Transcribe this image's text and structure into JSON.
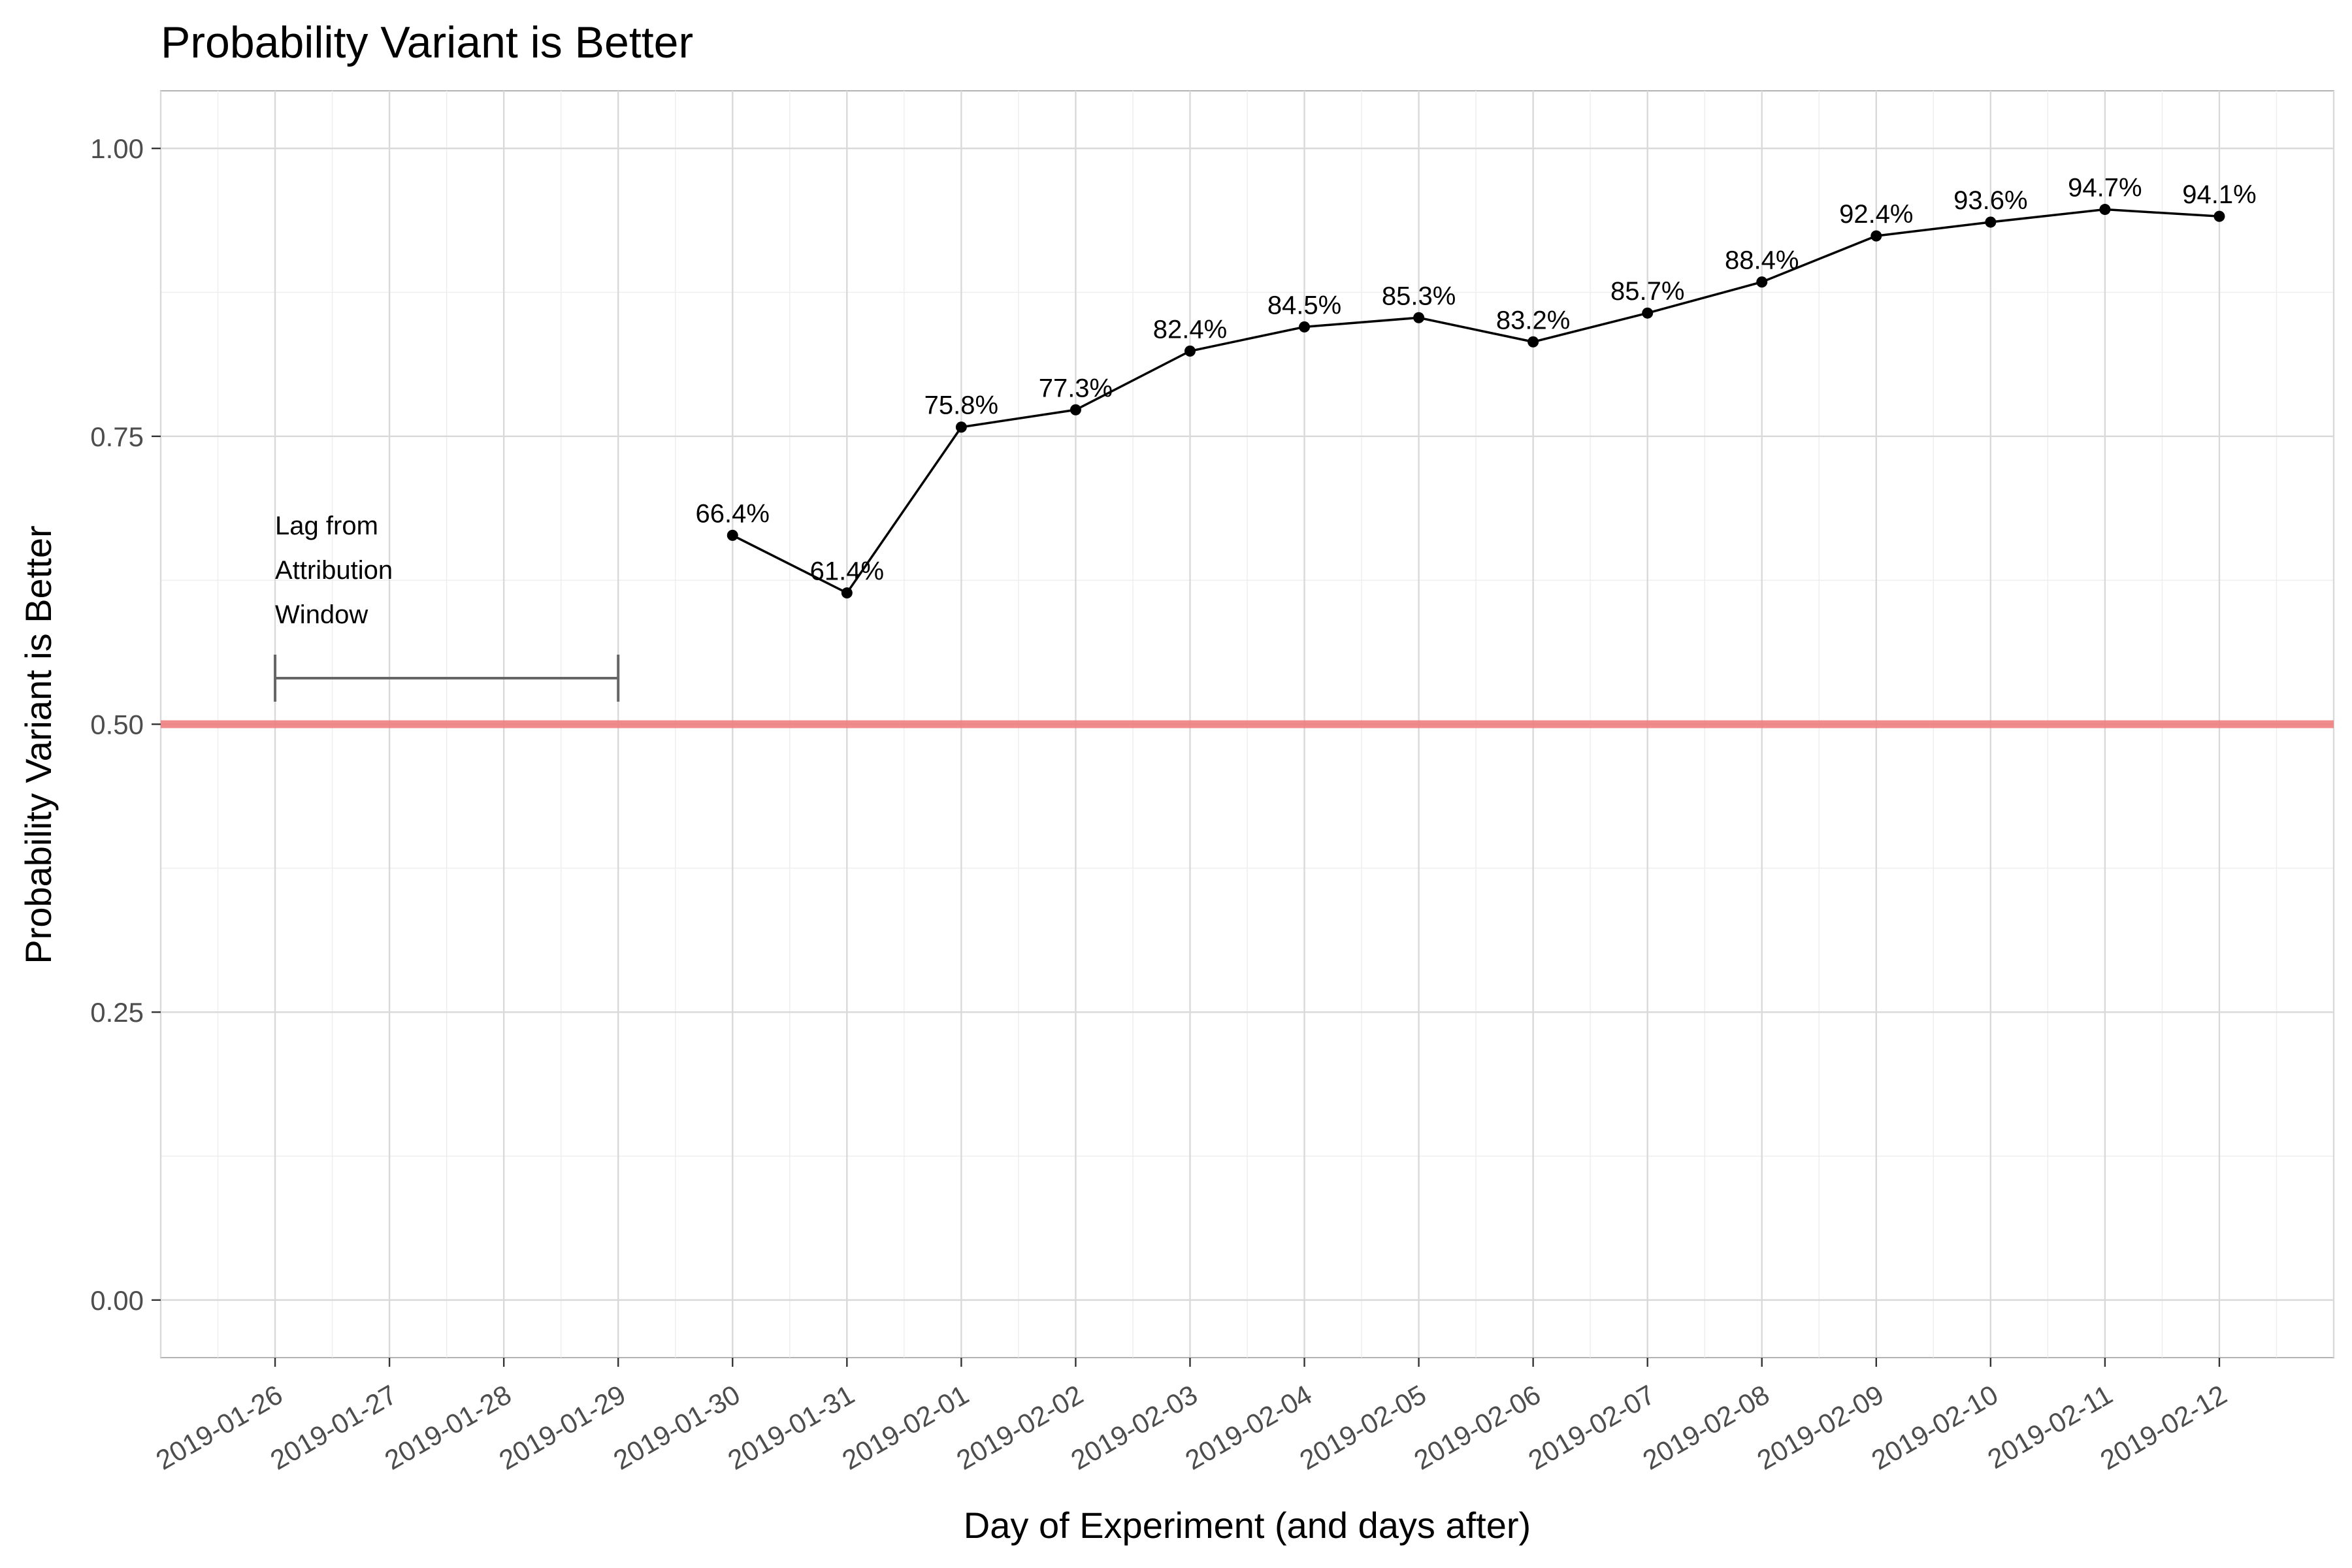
{
  "chart_data": {
    "type": "line",
    "title": "Probability Variant is Better",
    "xlabel": "Day of Experiment (and days after)",
    "ylabel": "Probability Variant is Better",
    "x_ticks": [
      "2019-01-26",
      "2019-01-27",
      "2019-01-28",
      "2019-01-29",
      "2019-01-30",
      "2019-01-31",
      "2019-02-01",
      "2019-02-02",
      "2019-02-03",
      "2019-02-04",
      "2019-02-05",
      "2019-02-06",
      "2019-02-07",
      "2019-02-08",
      "2019-02-09",
      "2019-02-10",
      "2019-02-11",
      "2019-02-12"
    ],
    "y_ticks": [
      "0.00",
      "0.25",
      "0.50",
      "0.75",
      "1.00"
    ],
    "ylim": [
      -0.05,
      1.05
    ],
    "xlim": [
      "2019-01-25",
      "2019-02-13"
    ],
    "grid": true,
    "series": [
      {
        "x": [
          "2019-01-30",
          "2019-01-31",
          "2019-02-01",
          "2019-02-02",
          "2019-02-03",
          "2019-02-04",
          "2019-02-05",
          "2019-02-06",
          "2019-02-07",
          "2019-02-08",
          "2019-02-09",
          "2019-02-10",
          "2019-02-11",
          "2019-02-12"
        ],
        "values": [
          0.664,
          0.614,
          0.758,
          0.773,
          0.824,
          0.845,
          0.853,
          0.832,
          0.857,
          0.884,
          0.924,
          0.936,
          0.947,
          0.941
        ],
        "labels": [
          "66.4%",
          "61.4%",
          "75.8%",
          "77.3%",
          "82.4%",
          "84.5%",
          "85.3%",
          "83.2%",
          "85.7%",
          "88.4%",
          "92.4%",
          "93.6%",
          "94.7%",
          "94.1%"
        ],
        "color": "#000000"
      }
    ],
    "reference_line": {
      "y": 0.5,
      "color": "#f08080"
    },
    "annotation": {
      "lines": [
        "Lag from",
        "Attribution",
        "Window"
      ],
      "x_start": "2019-01-26",
      "x_end": "2019-01-29",
      "y": 0.54,
      "color": "#666666"
    }
  }
}
